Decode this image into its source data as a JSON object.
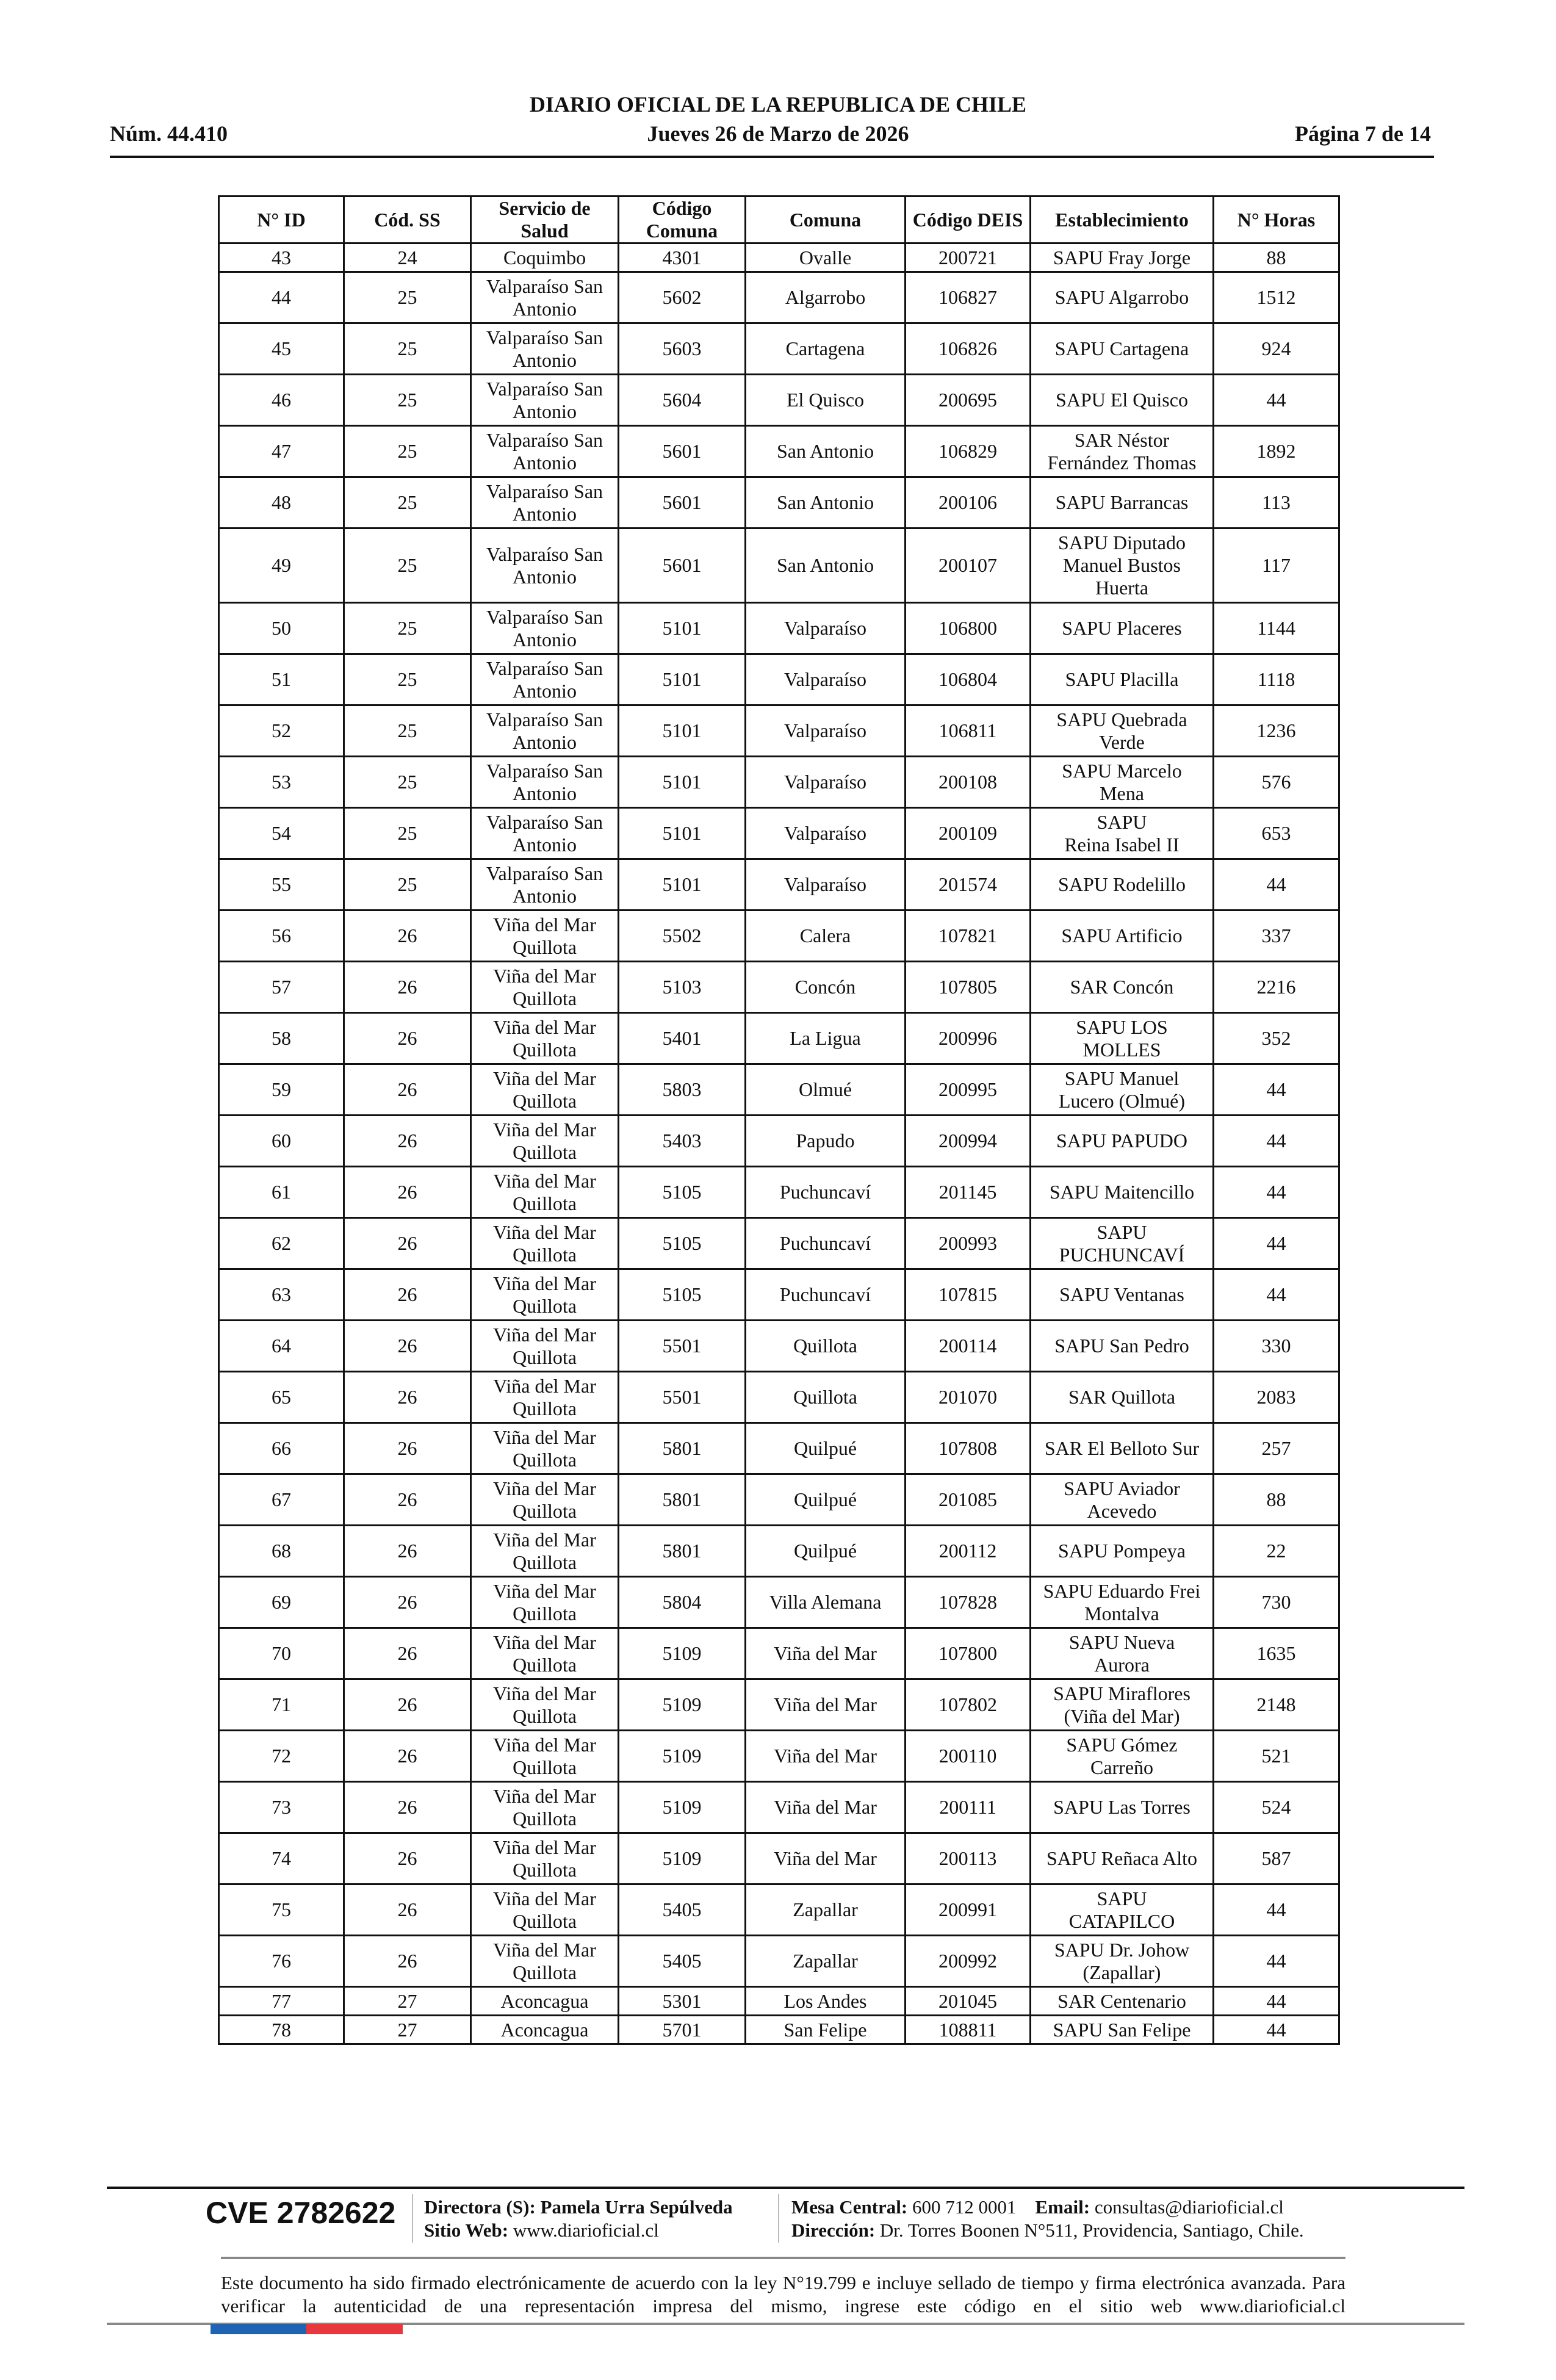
{
  "header": {
    "title": "DIARIO OFICIAL DE LA REPUBLICA DE CHILE",
    "number": "Núm. 44.410",
    "date": "Jueves 26 de Marzo de 2026",
    "page": "Página 7 de 14"
  },
  "table": {
    "columns": [
      "N° ID",
      "Cód. SS",
      "Servicio de\nSalud",
      "Código\nComuna",
      "Comuna",
      "Código DEIS",
      "Establecimiento",
      "N° Horas"
    ],
    "rows": [
      [
        "43",
        "24",
        "Coquimbo",
        "4301",
        "Ovalle",
        "200721",
        "SAPU Fray Jorge",
        "88"
      ],
      [
        "44",
        "25",
        "Valparaíso San\nAntonio",
        "5602",
        "Algarrobo",
        "106827",
        "SAPU Algarrobo",
        "1512"
      ],
      [
        "45",
        "25",
        "Valparaíso San\nAntonio",
        "5603",
        "Cartagena",
        "106826",
        "SAPU Cartagena",
        "924"
      ],
      [
        "46",
        "25",
        "Valparaíso San\nAntonio",
        "5604",
        "El Quisco",
        "200695",
        "SAPU El Quisco",
        "44"
      ],
      [
        "47",
        "25",
        "Valparaíso San\nAntonio",
        "5601",
        "San Antonio",
        "106829",
        "SAR Néstor\nFernández Thomas",
        "1892"
      ],
      [
        "48",
        "25",
        "Valparaíso San\nAntonio",
        "5601",
        "San Antonio",
        "200106",
        "SAPU Barrancas",
        "113"
      ],
      [
        "49",
        "25",
        "Valparaíso San\nAntonio",
        "5601",
        "San Antonio",
        "200107",
        "SAPU Diputado\nManuel Bustos\nHuerta",
        "117"
      ],
      [
        "50",
        "25",
        "Valparaíso San\nAntonio",
        "5101",
        "Valparaíso",
        "106800",
        "SAPU Placeres",
        "1144"
      ],
      [
        "51",
        "25",
        "Valparaíso San\nAntonio",
        "5101",
        "Valparaíso",
        "106804",
        "SAPU Placilla",
        "1118"
      ],
      [
        "52",
        "25",
        "Valparaíso San\nAntonio",
        "5101",
        "Valparaíso",
        "106811",
        "SAPU Quebrada\nVerde",
        "1236"
      ],
      [
        "53",
        "25",
        "Valparaíso San\nAntonio",
        "5101",
        "Valparaíso",
        "200108",
        "SAPU Marcelo\nMena",
        "576"
      ],
      [
        "54",
        "25",
        "Valparaíso San\nAntonio",
        "5101",
        "Valparaíso",
        "200109",
        "SAPU\nReina Isabel II",
        "653"
      ],
      [
        "55",
        "25",
        "Valparaíso San\nAntonio",
        "5101",
        "Valparaíso",
        "201574",
        "SAPU Rodelillo",
        "44"
      ],
      [
        "56",
        "26",
        "Viña del Mar\nQuillota",
        "5502",
        "Calera",
        "107821",
        "SAPU Artificio",
        "337"
      ],
      [
        "57",
        "26",
        "Viña del Mar\nQuillota",
        "5103",
        "Concón",
        "107805",
        "SAR Concón",
        "2216"
      ],
      [
        "58",
        "26",
        "Viña del Mar\nQuillota",
        "5401",
        "La Ligua",
        "200996",
        "SAPU LOS\nMOLLES",
        "352"
      ],
      [
        "59",
        "26",
        "Viña del Mar\nQuillota",
        "5803",
        "Olmué",
        "200995",
        "SAPU Manuel\nLucero (Olmué)",
        "44"
      ],
      [
        "60",
        "26",
        "Viña del Mar\nQuillota",
        "5403",
        "Papudo",
        "200994",
        "SAPU PAPUDO",
        "44"
      ],
      [
        "61",
        "26",
        "Viña del Mar\nQuillota",
        "5105",
        "Puchuncaví",
        "201145",
        "SAPU Maitencillo",
        "44"
      ],
      [
        "62",
        "26",
        "Viña del Mar\nQuillota",
        "5105",
        "Puchuncaví",
        "200993",
        "SAPU\nPUCHUNCAVÍ",
        "44"
      ],
      [
        "63",
        "26",
        "Viña del Mar\nQuillota",
        "5105",
        "Puchuncaví",
        "107815",
        "SAPU Ventanas",
        "44"
      ],
      [
        "64",
        "26",
        "Viña del Mar\nQuillota",
        "5501",
        "Quillota",
        "200114",
        "SAPU San Pedro",
        "330"
      ],
      [
        "65",
        "26",
        "Viña del Mar\nQuillota",
        "5501",
        "Quillota",
        "201070",
        "SAR Quillota",
        "2083"
      ],
      [
        "66",
        "26",
        "Viña del Mar\nQuillota",
        "5801",
        "Quilpué",
        "107808",
        "SAR El Belloto Sur",
        "257"
      ],
      [
        "67",
        "26",
        "Viña del Mar\nQuillota",
        "5801",
        "Quilpué",
        "201085",
        "SAPU Aviador\nAcevedo",
        "88"
      ],
      [
        "68",
        "26",
        "Viña del Mar\nQuillota",
        "5801",
        "Quilpué",
        "200112",
        "SAPU Pompeya",
        "22"
      ],
      [
        "69",
        "26",
        "Viña del Mar\nQuillota",
        "5804",
        "Villa Alemana",
        "107828",
        "SAPU Eduardo Frei\nMontalva",
        "730"
      ],
      [
        "70",
        "26",
        "Viña del Mar\nQuillota",
        "5109",
        "Viña del Mar",
        "107800",
        "SAPU Nueva\nAurora",
        "1635"
      ],
      [
        "71",
        "26",
        "Viña del Mar\nQuillota",
        "5109",
        "Viña del Mar",
        "107802",
        "SAPU Miraflores\n(Viña del Mar)",
        "2148"
      ],
      [
        "72",
        "26",
        "Viña del Mar\nQuillota",
        "5109",
        "Viña del Mar",
        "200110",
        "SAPU Gómez\nCarreño",
        "521"
      ],
      [
        "73",
        "26",
        "Viña del Mar\nQuillota",
        "5109",
        "Viña del Mar",
        "200111",
        "SAPU Las Torres",
        "524"
      ],
      [
        "74",
        "26",
        "Viña del Mar\nQuillota",
        "5109",
        "Viña del Mar",
        "200113",
        "SAPU Reñaca Alto",
        "587"
      ],
      [
        "75",
        "26",
        "Viña del Mar\nQuillota",
        "5405",
        "Zapallar",
        "200991",
        "SAPU\nCATAPILCO",
        "44"
      ],
      [
        "76",
        "26",
        "Viña del Mar\nQuillota",
        "5405",
        "Zapallar",
        "200992",
        "SAPU Dr. Johow\n(Zapallar)",
        "44"
      ],
      [
        "77",
        "27",
        "Aconcagua",
        "5301",
        "Los Andes",
        "201045",
        "SAR Centenario",
        "44"
      ],
      [
        "78",
        "27",
        "Aconcagua",
        "5701",
        "San Felipe",
        "108811",
        "SAPU San Felipe",
        "44"
      ]
    ]
  },
  "footer": {
    "cve": "CVE 2782622",
    "director_label": "Directora (S):",
    "director_name": "Pamela Urra Sepúlveda",
    "web_label": "Sitio Web:",
    "web_value": "www.diarioficial.cl",
    "phone_label": "Mesa Central:",
    "phone_value": "600 712 0001",
    "email_label": "Email:",
    "email_value": "consultas@diarioficial.cl",
    "address_label": "Dirección:",
    "address_value": "Dr. Torres Boonen N°511, Providencia, Santiago, Chile.",
    "disclaimer": "Este documento ha sido firmado electrónicamente de acuerdo con la ley N°19.799 e incluye sellado de tiempo y firma electrónica avanzada. Para verificar la autenticidad de una representación impresa del mismo, ingrese este código en el sitio web www.diarioficial.cl",
    "flag_colors": [
      "#1f63b3",
      "#e8383d"
    ]
  }
}
